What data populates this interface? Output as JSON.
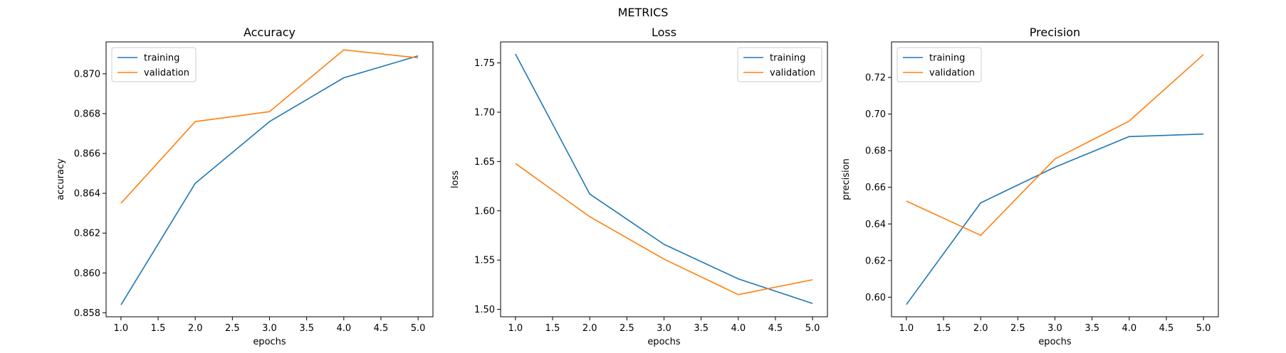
{
  "figure": {
    "suptitle": "METRICS"
  },
  "colors": {
    "training": "#1f77b4",
    "validation": "#ff7f0e",
    "axes": "#000000",
    "background": "#ffffff",
    "legend_border": "#cccccc"
  },
  "chart_data": [
    {
      "type": "line",
      "title": "Accuracy",
      "xlabel": "epochs",
      "ylabel": "accuracy",
      "x": [
        1,
        2,
        3,
        4,
        5
      ],
      "xlim": [
        0.8,
        5.2
      ],
      "ylim": [
        0.8578,
        0.8716
      ],
      "xticks": [
        "1.0",
        "1.5",
        "2.0",
        "2.5",
        "3.0",
        "3.5",
        "4.0",
        "4.5",
        "5.0"
      ],
      "yticks": [
        "0.858",
        "0.860",
        "0.862",
        "0.864",
        "0.866",
        "0.868",
        "0.870"
      ],
      "grid": false,
      "legend": "upper-left",
      "series": [
        {
          "name": "training",
          "values": [
            0.8584,
            0.8645,
            0.8676,
            0.8698,
            0.8709
          ]
        },
        {
          "name": "validation",
          "values": [
            0.8635,
            0.8676,
            0.8681,
            0.8712,
            0.8708
          ]
        }
      ]
    },
    {
      "type": "line",
      "title": "Loss",
      "xlabel": "epochs",
      "ylabel": "loss",
      "x": [
        1,
        2,
        3,
        4,
        5
      ],
      "xlim": [
        0.8,
        5.2
      ],
      "ylim": [
        1.4925,
        1.7713
      ],
      "xticks": [
        "1.0",
        "1.5",
        "2.0",
        "2.5",
        "3.0",
        "3.5",
        "4.0",
        "4.5",
        "5.0"
      ],
      "yticks": [
        "1.50",
        "1.55",
        "1.60",
        "1.65",
        "1.70",
        "1.75"
      ],
      "grid": false,
      "legend": "upper-right",
      "series": [
        {
          "name": "training",
          "values": [
            1.759,
            1.617,
            1.566,
            1.531,
            1.506
          ]
        },
        {
          "name": "validation",
          "values": [
            1.648,
            1.594,
            1.551,
            1.515,
            1.53
          ]
        }
      ]
    },
    {
      "type": "line",
      "title": "Precision",
      "xlabel": "epochs",
      "ylabel": "precision",
      "x": [
        1,
        2,
        3,
        4,
        5
      ],
      "xlim": [
        0.8,
        5.2
      ],
      "ylim": [
        0.5893,
        0.7394
      ],
      "xticks": [
        "1.0",
        "1.5",
        "2.0",
        "2.5",
        "3.0",
        "3.5",
        "4.0",
        "4.5",
        "5.0"
      ],
      "yticks": [
        "0.60",
        "0.62",
        "0.64",
        "0.66",
        "0.68",
        "0.70",
        "0.72"
      ],
      "grid": false,
      "legend": "upper-left",
      "series": [
        {
          "name": "training",
          "values": [
            0.596,
            0.6515,
            0.671,
            0.6877,
            0.6891
          ]
        },
        {
          "name": "validation",
          "values": [
            0.6525,
            0.6338,
            0.6755,
            0.6962,
            0.7325
          ]
        }
      ]
    }
  ]
}
